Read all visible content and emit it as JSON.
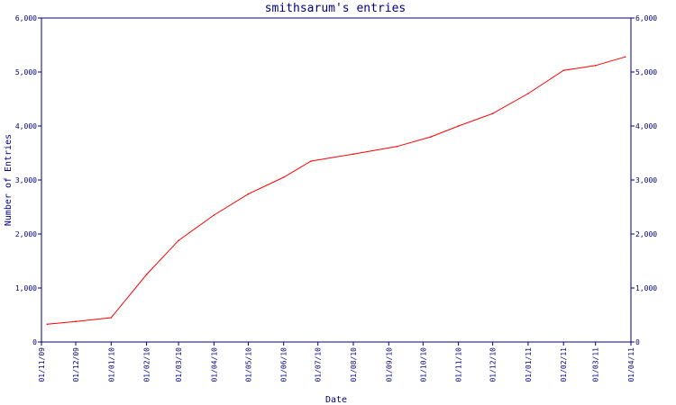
{
  "chart_data": {
    "type": "line",
    "title": "smithsarum's entries",
    "xlabel": "Date",
    "ylabel": "Number of Entries",
    "ylim": [
      0,
      6000
    ],
    "yticks": [
      0,
      1000,
      2000,
      3000,
      4000,
      5000,
      6000
    ],
    "ytick_labels": [
      "0",
      "1,000",
      "2,000",
      "3,000",
      "4,000",
      "5,000",
      "6,000"
    ],
    "xlim": [
      "2009-11-01",
      "2011-04-01"
    ],
    "xticks": [
      "2009-11-01",
      "2009-12-01",
      "2010-01-01",
      "2010-02-01",
      "2010-03-01",
      "2010-04-01",
      "2010-05-01",
      "2010-06-01",
      "2010-07-01",
      "2010-08-01",
      "2010-09-01",
      "2010-10-01",
      "2010-11-01",
      "2010-12-01",
      "2011-01-01",
      "2011-02-01",
      "2011-03-01",
      "2011-04-01"
    ],
    "xtick_labels": [
      "01/11/09",
      "01/12/09",
      "01/01/10",
      "01/02/10",
      "01/03/10",
      "01/04/10",
      "01/05/10",
      "01/06/10",
      "01/07/10",
      "01/08/10",
      "01/09/10",
      "01/10/10",
      "01/11/10",
      "01/12/10",
      "01/01/11",
      "01/02/11",
      "01/03/11",
      "01/04/11"
    ],
    "grid": false,
    "line_color": "#ff0000",
    "axis_color": "#000080",
    "series": [
      {
        "x": [
          "2009-11-06",
          "2009-12-01",
          "2010-01-01",
          "2010-02-01",
          "2010-03-01",
          "2010-04-01",
          "2010-05-01",
          "2010-06-01",
          "2010-06-25",
          "2010-08-01",
          "2010-09-08",
          "2010-10-08",
          "2010-11-01",
          "2010-12-01",
          "2011-01-01",
          "2011-02-01",
          "2011-03-01",
          "2011-03-27"
        ],
        "y": [
          330,
          380,
          450,
          1250,
          1880,
          2350,
          2740,
          3050,
          3350,
          3480,
          3620,
          3800,
          4000,
          4230,
          4600,
          5030,
          5120,
          5280
        ]
      }
    ]
  }
}
